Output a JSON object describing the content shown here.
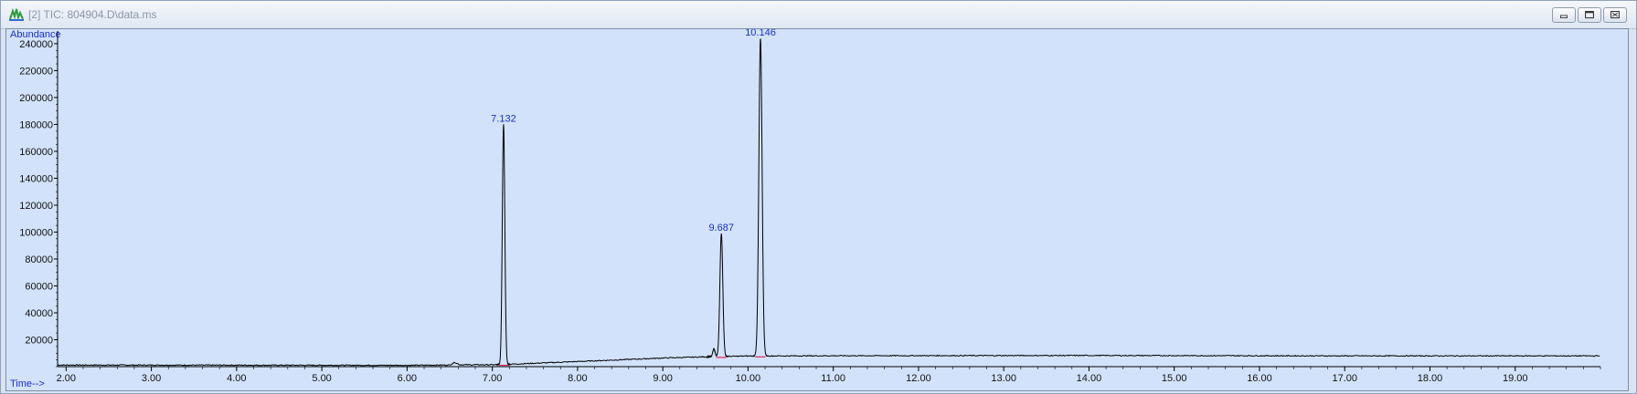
{
  "window": {
    "title": "[2] TIC: 804904.D\\data.ms",
    "minimize_icon": "minimize-icon",
    "restore_icon": "restore-icon",
    "close_icon": "close-icon"
  },
  "colors": {
    "plot_background": "#d2e2fb",
    "trace": "#000000",
    "label_blue": "#1a2fc8",
    "baseline_marker": "#e0245e"
  },
  "chart_data": {
    "type": "line",
    "title": "",
    "ylabel": "Abundance",
    "xlabel": "Time-->",
    "xlim": [
      1.9,
      20.0
    ],
    "ylim": [
      0,
      244000
    ],
    "grid": false,
    "x_ticks": [
      "2.00",
      "3.00",
      "4.00",
      "5.00",
      "6.00",
      "7.00",
      "8.00",
      "9.00",
      "10.00",
      "11.00",
      "12.00",
      "13.00",
      "14.00",
      "15.00",
      "16.00",
      "17.00",
      "18.00",
      "19.00"
    ],
    "y_ticks": [
      "20000",
      "40000",
      "60000",
      "80000",
      "100000",
      "120000",
      "140000",
      "160000",
      "180000",
      "200000",
      "220000",
      "240000"
    ],
    "baseline": [
      [
        1.9,
        1200
      ],
      [
        6.0,
        1000
      ],
      [
        6.5,
        1200
      ],
      [
        6.56,
        3200
      ],
      [
        6.62,
        1400
      ],
      [
        7.0,
        1400
      ],
      [
        7.3,
        2000
      ],
      [
        8.0,
        3800
      ],
      [
        9.0,
        6400
      ],
      [
        9.5,
        7300
      ],
      [
        10.0,
        7900
      ],
      [
        11.0,
        8100
      ],
      [
        14.0,
        8300
      ],
      [
        17.0,
        8000
      ],
      [
        20.0,
        8000
      ]
    ],
    "peaks": [
      {
        "label": "7.132",
        "rt": 7.132,
        "apex": 180000,
        "width": 0.035
      },
      {
        "label": "9.687",
        "rt": 9.687,
        "apex": 99000,
        "width": 0.04
      },
      {
        "label": "10.146",
        "rt": 10.146,
        "apex": 244000,
        "width": 0.045
      }
    ],
    "minor_peaks": [
      {
        "rt": 9.6,
        "apex": 13500,
        "width": 0.03
      }
    ]
  }
}
